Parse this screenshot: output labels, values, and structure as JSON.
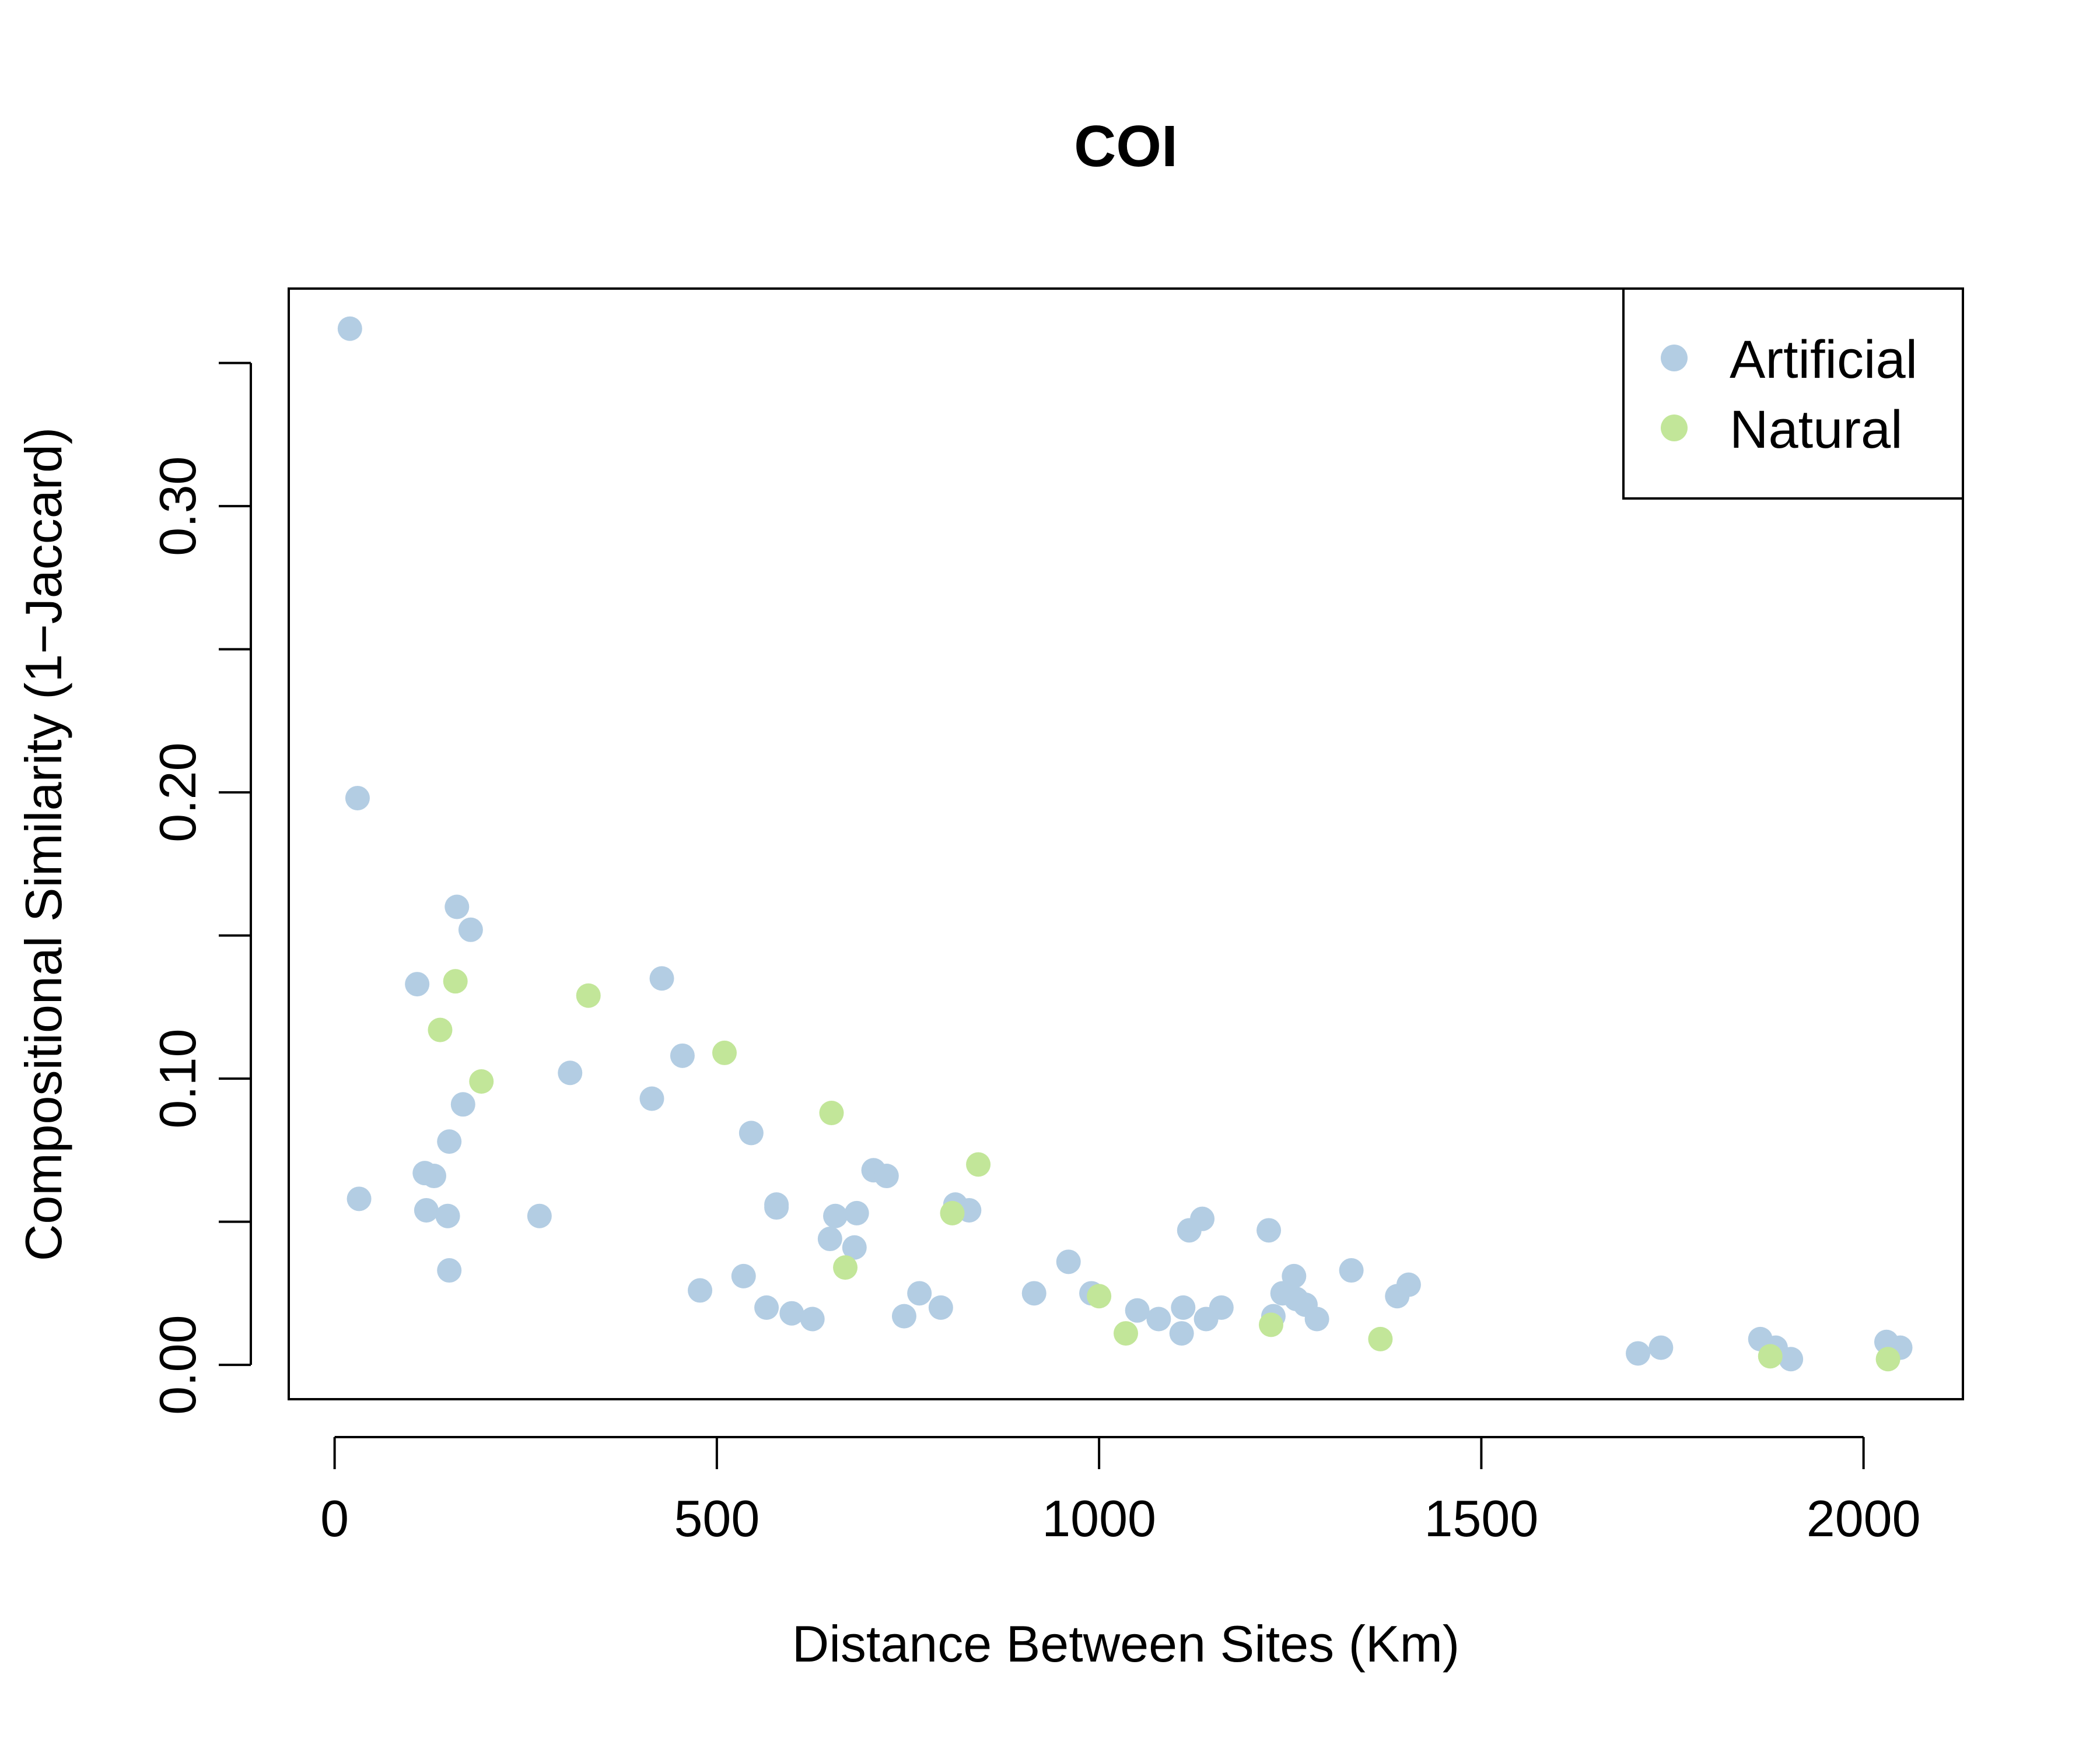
{
  "chart_data": {
    "type": "scatter",
    "title": "COI",
    "xlabel": "Distance Between Sites (Km)",
    "ylabel": "Compositional Similarity (1−Jaccard)",
    "xlim": [
      -60,
      2130
    ],
    "ylim": [
      -0.012,
      0.376
    ],
    "xticks": [
      0,
      500,
      1000,
      1500,
      2000
    ],
    "xtick_labels": [
      "0",
      "500",
      "1000",
      "1500",
      "2000"
    ],
    "yticks": [
      0.0,
      0.05,
      0.1,
      0.15,
      0.2,
      0.25,
      0.3,
      0.35
    ],
    "ytick_labels": [
      "0.00",
      "",
      "0.10",
      "",
      "0.20",
      "",
      "0.30",
      ""
    ],
    "legend": {
      "position": "top-right"
    },
    "series": [
      {
        "name": "Artificial",
        "color": "#b3cde3",
        "points": [
          [
            20,
            0.362
          ],
          [
            30,
            0.198
          ],
          [
            32,
            0.058
          ],
          [
            108,
            0.133
          ],
          [
            118,
            0.067
          ],
          [
            120,
            0.054
          ],
          [
            130,
            0.066
          ],
          [
            148,
            0.052
          ],
          [
            150,
            0.078
          ],
          [
            150,
            0.033
          ],
          [
            160,
            0.16
          ],
          [
            168,
            0.091
          ],
          [
            178,
            0.152
          ],
          [
            268,
            0.052
          ],
          [
            308,
            0.102
          ],
          [
            415,
            0.093
          ],
          [
            428,
            0.135
          ],
          [
            455,
            0.108
          ],
          [
            478,
            0.026
          ],
          [
            535,
            0.031
          ],
          [
            545,
            0.081
          ],
          [
            565,
            0.02
          ],
          [
            578,
            0.056
          ],
          [
            578,
            0.055
          ],
          [
            598,
            0.018
          ],
          [
            625,
            0.016
          ],
          [
            648,
            0.044
          ],
          [
            655,
            0.052
          ],
          [
            680,
            0.041
          ],
          [
            683,
            0.053
          ],
          [
            705,
            0.068
          ],
          [
            722,
            0.066
          ],
          [
            745,
            0.017
          ],
          [
            765,
            0.025
          ],
          [
            793,
            0.02
          ],
          [
            812,
            0.056
          ],
          [
            830,
            0.054
          ],
          [
            915,
            0.025
          ],
          [
            960,
            0.036
          ],
          [
            990,
            0.025
          ],
          [
            1050,
            0.019
          ],
          [
            1078,
            0.016
          ],
          [
            1108,
            0.011
          ],
          [
            1110,
            0.02
          ],
          [
            1118,
            0.047
          ],
          [
            1135,
            0.051
          ],
          [
            1140,
            0.016
          ],
          [
            1160,
            0.02
          ],
          [
            1222,
            0.047
          ],
          [
            1228,
            0.017
          ],
          [
            1240,
            0.025
          ],
          [
            1255,
            0.031
          ],
          [
            1258,
            0.023
          ],
          [
            1270,
            0.021
          ],
          [
            1285,
            0.016
          ],
          [
            1330,
            0.033
          ],
          [
            1390,
            0.024
          ],
          [
            1405,
            0.028
          ],
          [
            1705,
            0.004
          ],
          [
            1735,
            0.006
          ],
          [
            1865,
            0.009
          ],
          [
            1885,
            0.006
          ],
          [
            1905,
            0.002
          ],
          [
            2030,
            0.008
          ],
          [
            2048,
            0.006
          ]
        ]
      },
      {
        "name": "Natural",
        "color": "#c2e699",
        "points": [
          [
            138,
            0.117
          ],
          [
            158,
            0.134
          ],
          [
            192,
            0.099
          ],
          [
            332,
            0.129
          ],
          [
            510,
            0.109
          ],
          [
            650,
            0.088
          ],
          [
            668,
            0.034
          ],
          [
            808,
            0.053
          ],
          [
            842,
            0.07
          ],
          [
            1000,
            0.024
          ],
          [
            1035,
            0.011
          ],
          [
            1225,
            0.014
          ],
          [
            1368,
            0.009
          ],
          [
            1878,
            0.003
          ],
          [
            2032,
            0.002
          ]
        ]
      }
    ]
  }
}
